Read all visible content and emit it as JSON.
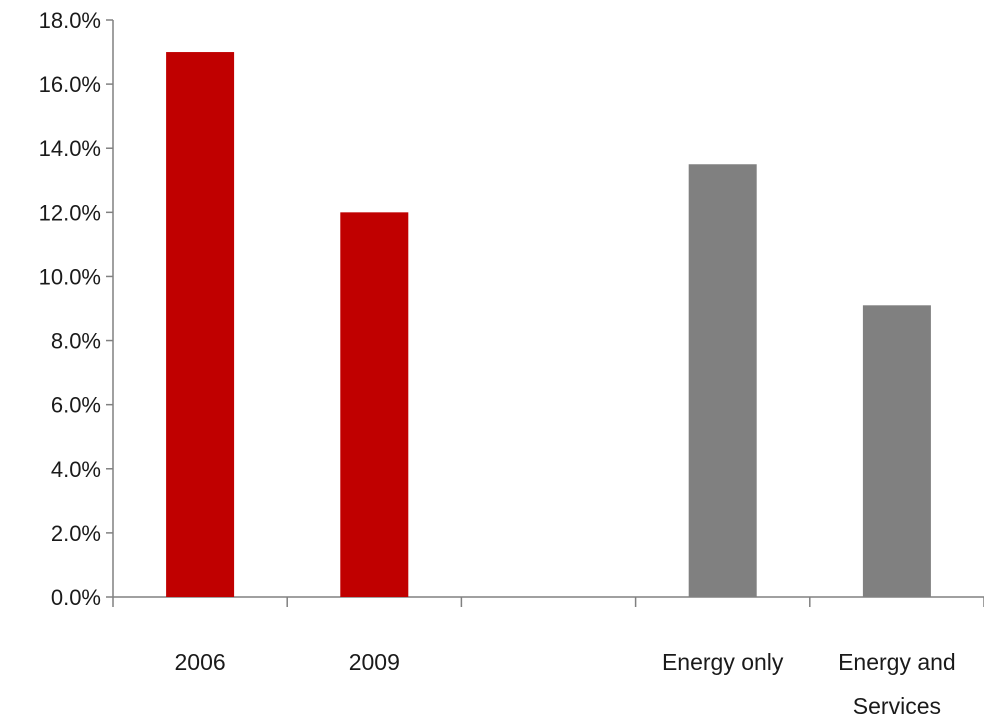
{
  "chart_data": {
    "type": "bar",
    "title": "",
    "xlabel": "",
    "ylabel": "",
    "ylim": [
      0,
      18
    ],
    "y_ticks": [
      0,
      2,
      4,
      6,
      8,
      10,
      12,
      14,
      16,
      18
    ],
    "y_tick_labels": [
      "0.0%",
      "2.0%",
      "4.0%",
      "6.0%",
      "8.0%",
      "10.0%",
      "12.0%",
      "14.0%",
      "16.0%",
      "18.0%"
    ],
    "grid": false,
    "legend": "none",
    "categories": [
      {
        "label_lines": [
          "2006"
        ],
        "value": 17.0,
        "color": "#c00000"
      },
      {
        "label_lines": [
          "2009"
        ],
        "value": 12.0,
        "color": "#c00000"
      },
      {
        "label_lines": [],
        "value": null,
        "color": null
      },
      {
        "label_lines": [
          "Energy only"
        ],
        "value": 13.5,
        "color": "#808080"
      },
      {
        "label_lines": [
          "Energy and",
          "Services"
        ],
        "value": 9.1,
        "color": "#808080"
      }
    ]
  },
  "colors": {
    "axis": "#808080",
    "text": "#1a1a1a"
  }
}
